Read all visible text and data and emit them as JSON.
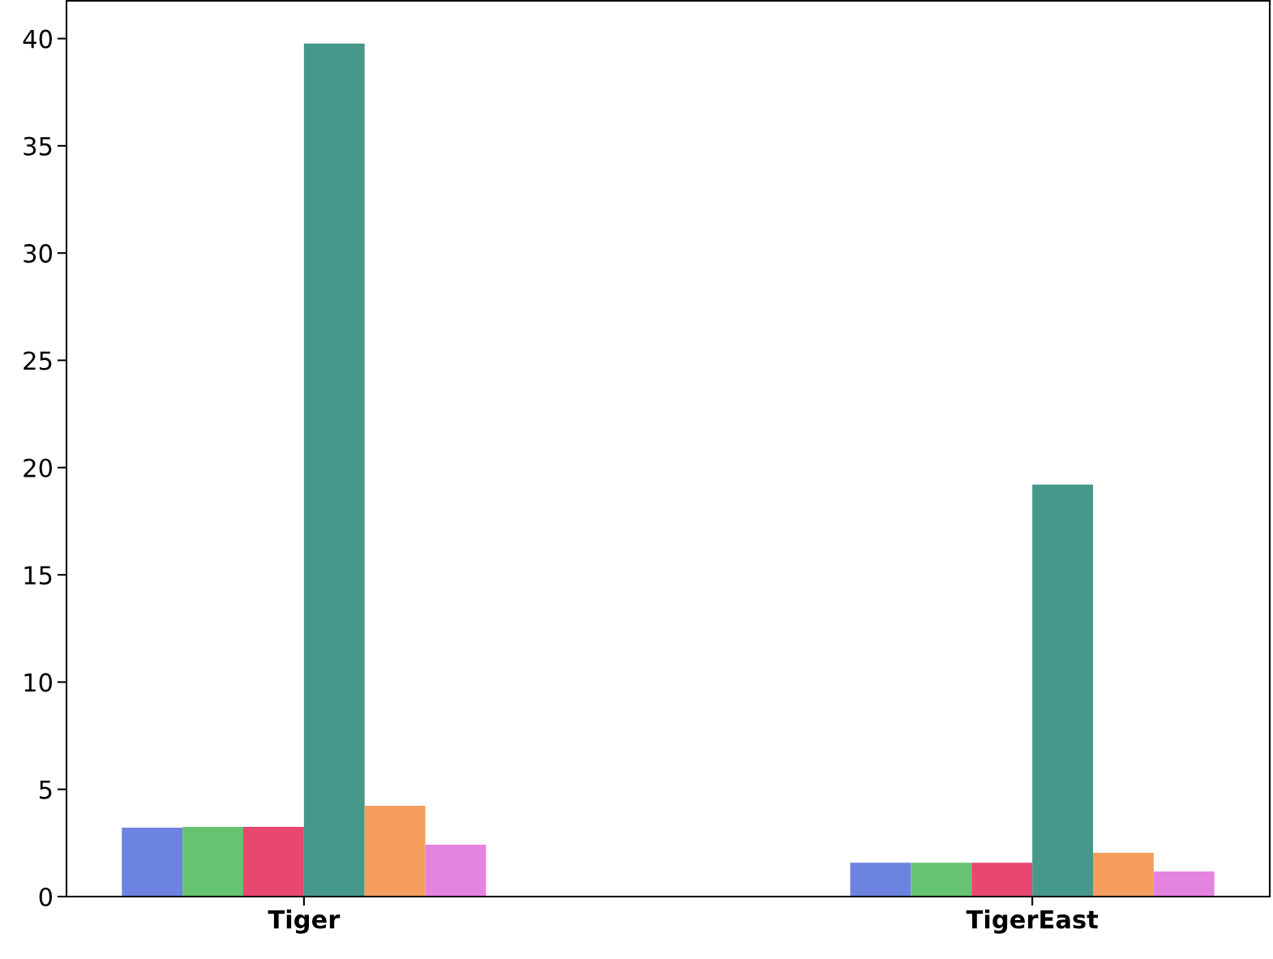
{
  "chart_data": {
    "type": "bar",
    "categories": [
      "Tiger",
      "TigerEast"
    ],
    "series": [
      {
        "color": "#6c83e0",
        "values": [
          3.21,
          1.58
        ]
      },
      {
        "color": "#66c36f",
        "values": [
          3.25,
          1.58
        ]
      },
      {
        "color": "#e8476f",
        "values": [
          3.25,
          1.58
        ]
      },
      {
        "color": "#46988b",
        "values": [
          39.77,
          19.21
        ]
      },
      {
        "color": "#f59d5c",
        "values": [
          4.23,
          2.04
        ]
      },
      {
        "color": "#e583e0",
        "values": [
          2.42,
          1.17
        ]
      }
    ],
    "ylim": [
      0,
      41.76
    ],
    "yticks": [
      0,
      5,
      10,
      15,
      20,
      25,
      30,
      35,
      40
    ],
    "grid": false,
    "legend": false
  }
}
